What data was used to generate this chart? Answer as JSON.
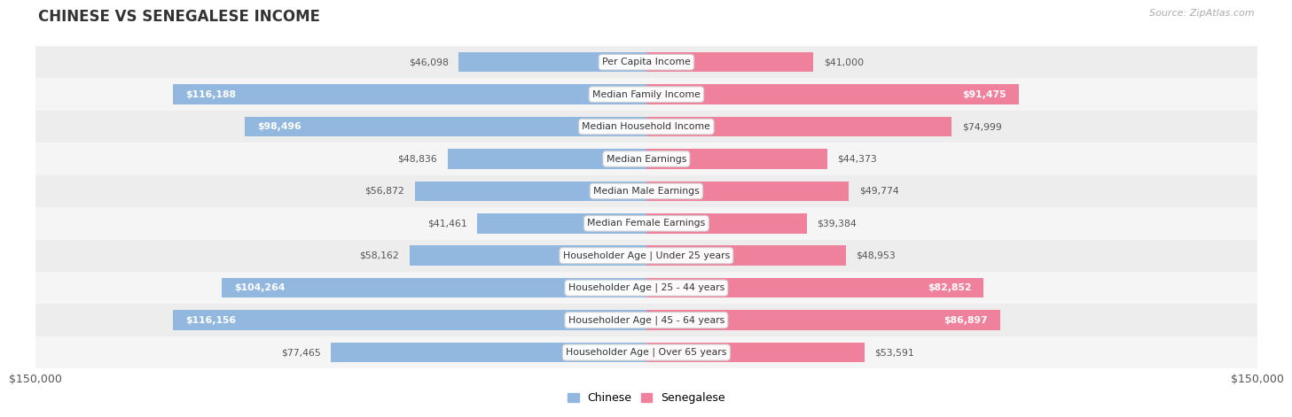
{
  "title": "CHINESE VS SENEGALESE INCOME",
  "source": "Source: ZipAtlas.com",
  "categories": [
    "Per Capita Income",
    "Median Family Income",
    "Median Household Income",
    "Median Earnings",
    "Median Male Earnings",
    "Median Female Earnings",
    "Householder Age | Under 25 years",
    "Householder Age | 25 - 44 years",
    "Householder Age | 45 - 64 years",
    "Householder Age | Over 65 years"
  ],
  "chinese_values": [
    46098,
    116188,
    98496,
    48836,
    56872,
    41461,
    58162,
    104264,
    116156,
    77465
  ],
  "senegalese_values": [
    41000,
    91475,
    74999,
    44373,
    49774,
    39384,
    48953,
    82852,
    86897,
    53591
  ],
  "chinese_labels": [
    "$46,098",
    "$116,188",
    "$98,496",
    "$48,836",
    "$56,872",
    "$41,461",
    "$58,162",
    "$104,264",
    "$116,156",
    "$77,465"
  ],
  "senegalese_labels": [
    "$41,000",
    "$91,475",
    "$74,999",
    "$44,373",
    "$49,774",
    "$39,384",
    "$48,953",
    "$82,852",
    "$86,897",
    "$53,591"
  ],
  "chinese_label_inside": [
    false,
    true,
    true,
    false,
    false,
    false,
    false,
    true,
    true,
    false
  ],
  "senegalese_label_inside": [
    false,
    true,
    false,
    false,
    false,
    false,
    false,
    true,
    true,
    false
  ],
  "max_value": 150000,
  "chinese_color": "#92b8e0",
  "senegalese_color": "#f0819d",
  "bar_height": 0.62,
  "row_bg_even": "#ededee",
  "row_bg_odd": "#f5f5f6",
  "bg_color": "#ffffff",
  "axis_label_left": "$150,000",
  "axis_label_right": "$150,000",
  "legend_chinese": "Chinese",
  "legend_senegalese": "Senegalese",
  "label_fontsize": 7.8,
  "cat_fontsize": 7.8,
  "title_fontsize": 12,
  "source_fontsize": 8
}
